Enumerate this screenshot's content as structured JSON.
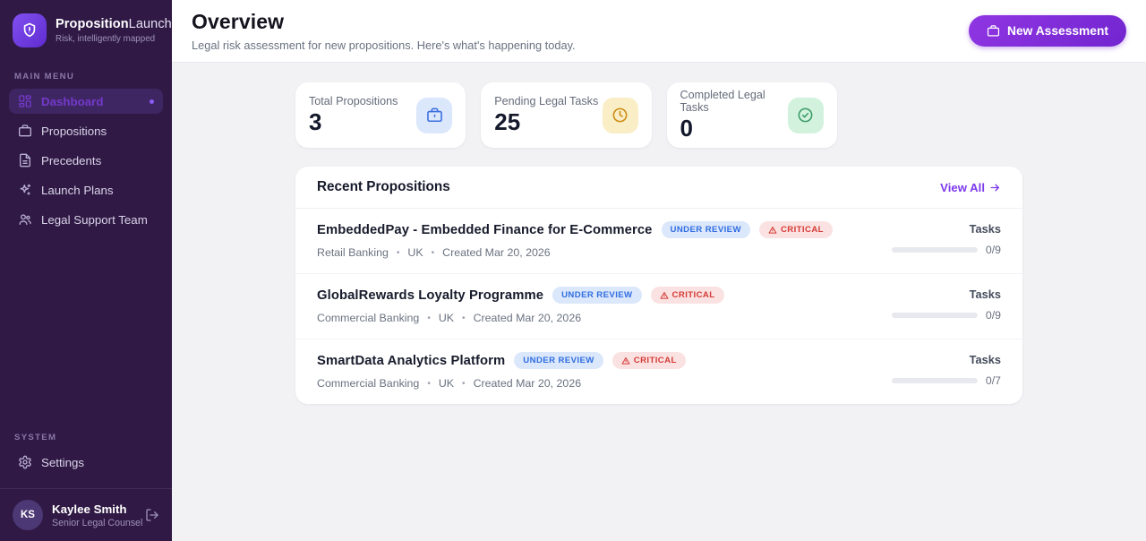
{
  "sidebar": {
    "brand": {
      "title_bold": "Proposition",
      "title_light": "Launch",
      "subtitle": "Risk, intelligently mapped"
    },
    "main_menu_label": "MAIN MENU",
    "items": [
      {
        "label": "Dashboard",
        "icon": "dashboard-icon",
        "active": true
      },
      {
        "label": "Propositions",
        "icon": "briefcase-icon",
        "active": false
      },
      {
        "label": "Precedents",
        "icon": "document-icon",
        "active": false
      },
      {
        "label": "Launch Plans",
        "icon": "sparkles-icon",
        "active": false
      },
      {
        "label": "Legal Support Team",
        "icon": "users-icon",
        "active": false
      }
    ],
    "system_label": "SYSTEM",
    "settings_label": "Settings",
    "user": {
      "initials": "KS",
      "name": "Kaylee Smith",
      "role": "Senior Legal Counsel"
    }
  },
  "header": {
    "title": "Overview",
    "subtitle": "Legal risk assessment for new propositions. Here's what's happening today.",
    "new_assessment_label": "New Assessment"
  },
  "stats": [
    {
      "label": "Total Propositions",
      "value": "3",
      "icon": "briefcase-icon",
      "accent": "#3b6fe0",
      "accent_bg": "#dbe7fb"
    },
    {
      "label": "Pending Legal Tasks",
      "value": "25",
      "icon": "clock-icon",
      "accent": "#cd8a10",
      "accent_bg": "#f9eec6"
    },
    {
      "label": "Completed Legal Tasks",
      "value": "0",
      "icon": "check-circle-icon",
      "accent": "#3a9b67",
      "accent_bg": "#d2f2de"
    }
  ],
  "recent": {
    "title": "Recent Propositions",
    "view_all_label": "View All",
    "rows": [
      {
        "title": "EmbeddedPay - Embedded Finance for E-Commerce",
        "status": "UNDER REVIEW",
        "risk": "CRITICAL",
        "industry": "Retail Banking",
        "region": "UK",
        "created": "Created Mar 20, 2026",
        "tasks_label": "Tasks",
        "tasks_done": 0,
        "tasks_total": 9,
        "tasks_text": "0/9"
      },
      {
        "title": "GlobalRewards Loyalty Programme",
        "status": "UNDER REVIEW",
        "risk": "CRITICAL",
        "industry": "Commercial Banking",
        "region": "UK",
        "created": "Created Mar 20, 2026",
        "tasks_label": "Tasks",
        "tasks_done": 0,
        "tasks_total": 9,
        "tasks_text": "0/9"
      },
      {
        "title": "SmartData Analytics Platform",
        "status": "UNDER REVIEW",
        "risk": "CRITICAL",
        "industry": "Commercial Banking",
        "region": "UK",
        "created": "Created Mar 20, 2026",
        "tasks_label": "Tasks",
        "tasks_done": 0,
        "tasks_total": 7,
        "tasks_text": "0/7"
      }
    ]
  },
  "colors": {
    "sidebar_bg": "#301a45",
    "sidebar_active": "#7439c9",
    "brand_gradient_start": "#8250f0",
    "brand_gradient_end": "#5f2bd0",
    "accent_purple": "#7c3aed",
    "status_badge_bg": "#dbe7fb",
    "status_badge_text": "#2f6de0",
    "risk_badge_bg": "#fbe2e2",
    "risk_badge_text": "#d43a35"
  }
}
